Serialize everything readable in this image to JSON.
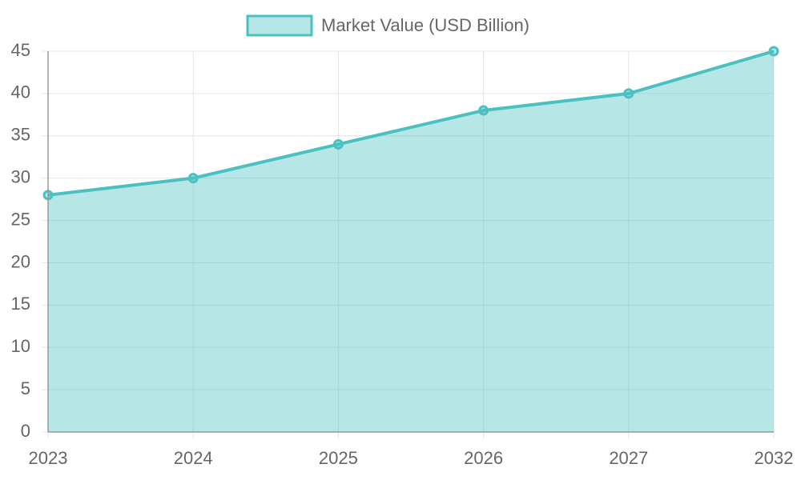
{
  "chart_data": {
    "type": "area",
    "categories": [
      "2023",
      "2024",
      "2025",
      "2026",
      "2027",
      "2032"
    ],
    "series": [
      {
        "name": "Market Value (USD Billion)",
        "color": "#4bc0c0",
        "values": [
          28,
          30,
          34,
          38,
          40,
          45
        ]
      }
    ],
    "ylim": [
      0,
      45
    ],
    "yticks": [
      0,
      5,
      10,
      15,
      20,
      25,
      30,
      35,
      40,
      45
    ],
    "grid": true,
    "legend": "top"
  }
}
